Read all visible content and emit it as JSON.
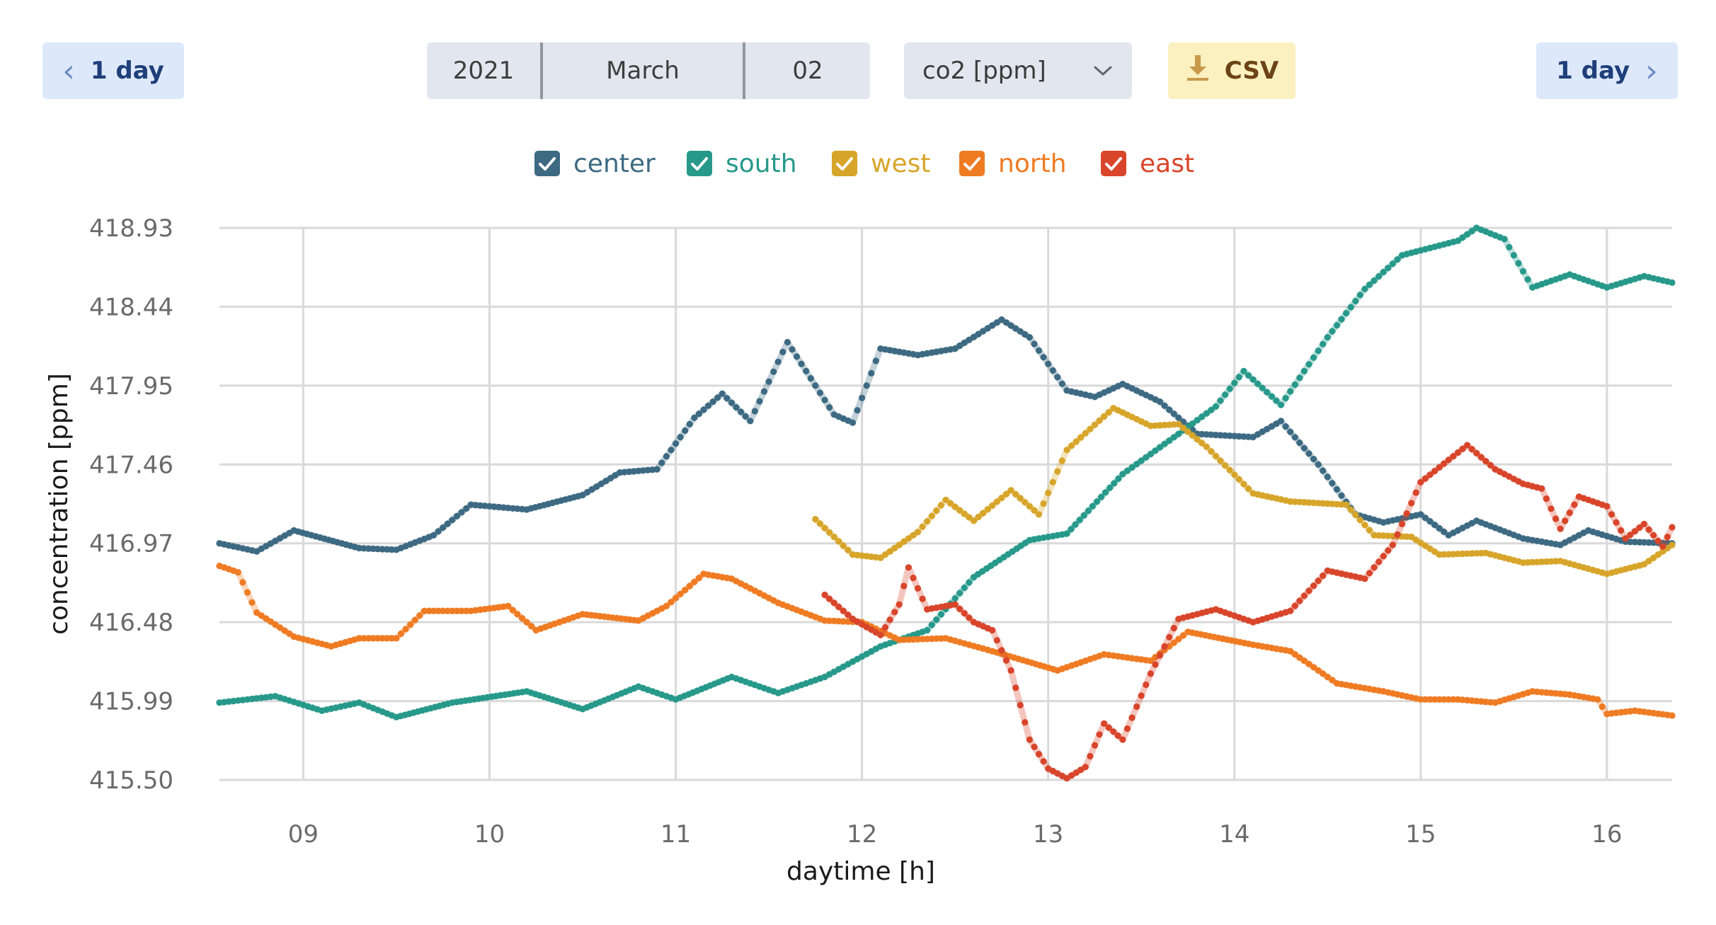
{
  "controls": {
    "prev_label": "1 day",
    "next_label": "1 day",
    "year": "2021",
    "month": "March",
    "day": "02",
    "metric": "co2 [ppm]",
    "csv_label": "CSV"
  },
  "icons": {
    "prev": "chevron-left-icon",
    "next": "chevron-right-icon",
    "dropdown": "chevron-down-icon",
    "download": "download-icon"
  },
  "chart_data": {
    "type": "line",
    "title": "",
    "xlabel": "daytime [h]",
    "ylabel": "concentration [ppm]",
    "x_range": [
      8.55,
      16.35
    ],
    "ylim": [
      415.5,
      418.93
    ],
    "x_ticks": [
      9,
      10,
      11,
      12,
      13,
      14,
      15,
      16
    ],
    "x_tick_labels": [
      "09",
      "10",
      "11",
      "12",
      "13",
      "14",
      "15",
      "16"
    ],
    "y_ticks": [
      415.5,
      415.99,
      416.48,
      416.97,
      417.46,
      417.95,
      418.44,
      418.93
    ],
    "y_tick_labels": [
      "415.50",
      "415.99",
      "416.48",
      "416.97",
      "417.46",
      "417.95",
      "418.44",
      "418.93"
    ],
    "grid": true,
    "legend_position": "top-center",
    "series": [
      {
        "name": "center",
        "color": "#3d6a82",
        "checked": true,
        "points": [
          [
            8.55,
            416.97
          ],
          [
            8.75,
            416.92
          ],
          [
            8.95,
            417.05
          ],
          [
            9.3,
            416.94
          ],
          [
            9.5,
            416.93
          ],
          [
            9.7,
            417.02
          ],
          [
            9.9,
            417.21
          ],
          [
            10.2,
            417.18
          ],
          [
            10.5,
            417.27
          ],
          [
            10.7,
            417.41
          ],
          [
            10.9,
            417.43
          ],
          [
            11.1,
            417.75
          ],
          [
            11.25,
            417.9
          ],
          [
            11.4,
            417.73
          ],
          [
            11.6,
            418.22
          ],
          [
            11.85,
            417.77
          ],
          [
            11.95,
            417.72
          ],
          [
            12.1,
            418.18
          ],
          [
            12.3,
            418.14
          ],
          [
            12.5,
            418.18
          ],
          [
            12.75,
            418.36
          ],
          [
            12.9,
            418.25
          ],
          [
            13.1,
            417.92
          ],
          [
            13.25,
            417.88
          ],
          [
            13.4,
            417.96
          ],
          [
            13.6,
            417.85
          ],
          [
            13.8,
            417.65
          ],
          [
            14.1,
            417.63
          ],
          [
            14.25,
            417.73
          ],
          [
            14.45,
            417.46
          ],
          [
            14.65,
            417.15
          ],
          [
            14.8,
            417.1
          ],
          [
            15.0,
            417.15
          ],
          [
            15.15,
            417.02
          ],
          [
            15.3,
            417.11
          ],
          [
            15.55,
            417.0
          ],
          [
            15.75,
            416.96
          ],
          [
            15.9,
            417.05
          ],
          [
            16.1,
            416.98
          ],
          [
            16.35,
            416.97
          ]
        ]
      },
      {
        "name": "south",
        "color": "#27998a",
        "checked": true,
        "points": [
          [
            8.55,
            415.98
          ],
          [
            8.85,
            416.02
          ],
          [
            9.1,
            415.93
          ],
          [
            9.3,
            415.98
          ],
          [
            9.5,
            415.89
          ],
          [
            9.8,
            415.98
          ],
          [
            10.2,
            416.05
          ],
          [
            10.5,
            415.94
          ],
          [
            10.8,
            416.08
          ],
          [
            11.0,
            416.0
          ],
          [
            11.3,
            416.14
          ],
          [
            11.55,
            416.04
          ],
          [
            11.8,
            416.14
          ],
          [
            12.1,
            416.33
          ],
          [
            12.35,
            416.43
          ],
          [
            12.6,
            416.76
          ],
          [
            12.9,
            416.99
          ],
          [
            13.1,
            417.03
          ],
          [
            13.4,
            417.4
          ],
          [
            13.7,
            417.65
          ],
          [
            13.9,
            417.82
          ],
          [
            14.05,
            418.04
          ],
          [
            14.25,
            417.83
          ],
          [
            14.5,
            418.25
          ],
          [
            14.7,
            418.55
          ],
          [
            14.9,
            418.76
          ],
          [
            15.2,
            418.85
          ],
          [
            15.3,
            418.93
          ],
          [
            15.45,
            418.86
          ],
          [
            15.6,
            418.56
          ],
          [
            15.8,
            418.64
          ],
          [
            16.0,
            418.56
          ],
          [
            16.2,
            418.63
          ],
          [
            16.35,
            418.59
          ]
        ]
      },
      {
        "name": "west",
        "color": "#d7a52a",
        "checked": true,
        "points": [
          [
            11.75,
            417.12
          ],
          [
            11.95,
            416.9
          ],
          [
            12.1,
            416.88
          ],
          [
            12.3,
            417.04
          ],
          [
            12.45,
            417.24
          ],
          [
            12.6,
            417.11
          ],
          [
            12.8,
            417.3
          ],
          [
            12.95,
            417.15
          ],
          [
            13.1,
            417.55
          ],
          [
            13.35,
            417.81
          ],
          [
            13.55,
            417.7
          ],
          [
            13.7,
            417.71
          ],
          [
            13.85,
            417.57
          ],
          [
            14.1,
            417.28
          ],
          [
            14.3,
            417.23
          ],
          [
            14.6,
            417.21
          ],
          [
            14.75,
            417.02
          ],
          [
            14.95,
            417.01
          ],
          [
            15.1,
            416.9
          ],
          [
            15.35,
            416.91
          ],
          [
            15.55,
            416.85
          ],
          [
            15.75,
            416.86
          ],
          [
            16.0,
            416.78
          ],
          [
            16.2,
            416.84
          ],
          [
            16.35,
            416.96
          ]
        ]
      },
      {
        "name": "north",
        "color": "#ef7b23",
        "checked": true,
        "points": [
          [
            8.55,
            416.83
          ],
          [
            8.65,
            416.79
          ],
          [
            8.75,
            416.54
          ],
          [
            8.95,
            416.39
          ],
          [
            9.15,
            416.33
          ],
          [
            9.3,
            416.38
          ],
          [
            9.5,
            416.38
          ],
          [
            9.65,
            416.55
          ],
          [
            9.9,
            416.55
          ],
          [
            10.1,
            416.58
          ],
          [
            10.25,
            416.43
          ],
          [
            10.5,
            416.53
          ],
          [
            10.8,
            416.49
          ],
          [
            10.95,
            416.58
          ],
          [
            11.15,
            416.78
          ],
          [
            11.3,
            416.75
          ],
          [
            11.55,
            416.6
          ],
          [
            11.8,
            416.49
          ],
          [
            12.0,
            416.48
          ],
          [
            12.2,
            416.37
          ],
          [
            12.45,
            416.38
          ],
          [
            12.7,
            416.3
          ],
          [
            13.05,
            416.18
          ],
          [
            13.3,
            416.28
          ],
          [
            13.55,
            416.24
          ],
          [
            13.75,
            416.42
          ],
          [
            14.1,
            416.34
          ],
          [
            14.3,
            416.3
          ],
          [
            14.55,
            416.1
          ],
          [
            14.8,
            416.05
          ],
          [
            15.0,
            416.0
          ],
          [
            15.2,
            416.0
          ],
          [
            15.4,
            415.98
          ],
          [
            15.6,
            416.05
          ],
          [
            15.8,
            416.03
          ],
          [
            15.95,
            416.0
          ],
          [
            16.0,
            415.91
          ],
          [
            16.15,
            415.93
          ],
          [
            16.35,
            415.9
          ]
        ]
      },
      {
        "name": "east",
        "color": "#d8452b",
        "checked": true,
        "points": [
          [
            11.8,
            416.65
          ],
          [
            11.95,
            416.5
          ],
          [
            12.1,
            416.4
          ],
          [
            12.2,
            416.59
          ],
          [
            12.25,
            416.82
          ],
          [
            12.35,
            416.56
          ],
          [
            12.5,
            416.59
          ],
          [
            12.6,
            416.48
          ],
          [
            12.7,
            416.43
          ],
          [
            12.8,
            416.18
          ],
          [
            12.9,
            415.75
          ],
          [
            13.0,
            415.57
          ],
          [
            13.1,
            415.51
          ],
          [
            13.2,
            415.58
          ],
          [
            13.3,
            415.85
          ],
          [
            13.4,
            415.75
          ],
          [
            13.55,
            416.16
          ],
          [
            13.7,
            416.5
          ],
          [
            13.9,
            416.56
          ],
          [
            14.1,
            416.48
          ],
          [
            14.3,
            416.55
          ],
          [
            14.5,
            416.8
          ],
          [
            14.7,
            416.75
          ],
          [
            14.85,
            416.96
          ],
          [
            15.0,
            417.35
          ],
          [
            15.25,
            417.58
          ],
          [
            15.4,
            417.43
          ],
          [
            15.55,
            417.34
          ],
          [
            15.65,
            417.31
          ],
          [
            15.75,
            417.06
          ],
          [
            15.85,
            417.26
          ],
          [
            16.0,
            417.2
          ],
          [
            16.1,
            417.0
          ],
          [
            16.2,
            417.09
          ],
          [
            16.3,
            416.95
          ],
          [
            16.35,
            417.07
          ]
        ]
      }
    ]
  }
}
